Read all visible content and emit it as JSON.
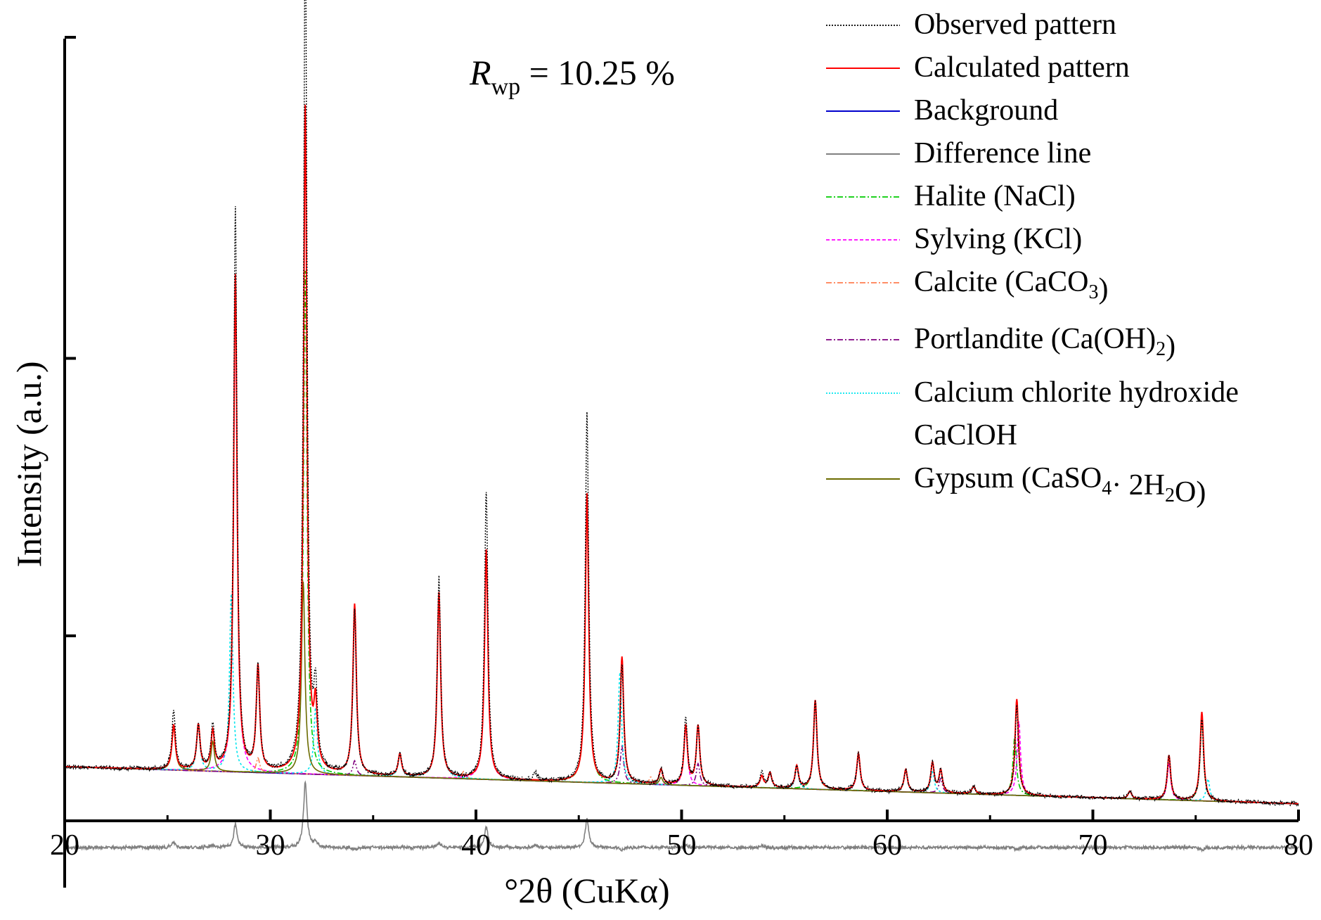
{
  "chart_data": {
    "type": "line",
    "title": "",
    "annotation": {
      "symbol": "R",
      "subscript": "wp",
      "text": " = 10.25 %"
    },
    "xlabel": "°2θ (CuKα)",
    "ylabel": "Intensity (a.u.)",
    "xlim": [
      20,
      80
    ],
    "ylim": [
      0,
      100
    ],
    "x_ticks": [
      20,
      30,
      40,
      50,
      60,
      70,
      80
    ],
    "grid": false,
    "legend_position": "top-right",
    "legend": [
      {
        "label": "Observed pattern",
        "color": "#000000",
        "style": "dotted"
      },
      {
        "label": "Calculated pattern",
        "color": "#ff0000",
        "style": "solid"
      },
      {
        "label": "Background",
        "color": "#0000cc",
        "style": "solid"
      },
      {
        "label": "Difference line",
        "color": "#808080",
        "style": "solid"
      },
      {
        "label": "Halite (NaCl)",
        "color": "#00cc00",
        "style": "dashdot"
      },
      {
        "label": "Sylving (KCl)",
        "color": "#ff00ff",
        "style": "dashed"
      },
      {
        "label": "Calcite (CaCO",
        "sub": "3",
        "tail": ")",
        "color": "#ff7f50",
        "style": "dashdot"
      },
      {
        "label": "Portlandite (Ca(OH)",
        "sub": "2",
        "tail": ")",
        "color": "#800080",
        "style": "dashdot"
      },
      {
        "label": "Calcium chlorite hydroxide",
        "label2": "CaClOH",
        "color": "#00e5ee",
        "style": "dotted"
      },
      {
        "label": "Gypsum (CaSO",
        "sub": "4",
        "tail": "· 2H",
        "sub2": "2",
        "tail2": "O)",
        "color": "#6b6b00",
        "style": "solid"
      }
    ],
    "background": {
      "x": [
        20,
        80
      ],
      "y": [
        7.3,
        2.3
      ]
    },
    "phases": [
      {
        "name": "Halite (NaCl)",
        "color": "#00cc00",
        "dash": "8,3,2,3",
        "peaks": [
          [
            31.7,
            68
          ],
          [
            45.4,
            39
          ],
          [
            56.5,
            12
          ],
          [
            66.2,
            8
          ],
          [
            75.3,
            11
          ]
        ]
      },
      {
        "name": "Sylving (KCl)",
        "color": "#ff00ff",
        "dash": "5,3",
        "peaks": [
          [
            28.3,
            65
          ],
          [
            40.5,
            31
          ],
          [
            50.2,
            8
          ],
          [
            58.6,
            5
          ],
          [
            66.4,
            10
          ],
          [
            73.7,
            5
          ]
        ]
      },
      {
        "name": "Calcite (CaCO3)",
        "color": "#ff7f50",
        "dash": "8,3,2,3",
        "peaks": [
          [
            29.4,
            2
          ],
          [
            39.4,
            1
          ],
          [
            48.5,
            1
          ]
        ]
      },
      {
        "name": "Portlandite (Ca(OH)2)",
        "color": "#800080",
        "dash": "8,3,2,3,2,3",
        "peaks": [
          [
            34.1,
            2
          ],
          [
            47.1,
            5
          ],
          [
            50.8,
            3
          ],
          [
            62.6,
            2
          ]
        ]
      },
      {
        "name": "Calcium chlorite hydroxide CaClOH",
        "color": "#00e5ee",
        "dash": "3,3",
        "peaks": [
          [
            26.5,
            6
          ],
          [
            28.1,
            24
          ],
          [
            32.2,
            9
          ],
          [
            36.3,
            3
          ],
          [
            38.2,
            25
          ],
          [
            47.0,
            15
          ],
          [
            55.6,
            3
          ],
          [
            60.9,
            3
          ],
          [
            62.2,
            3
          ],
          [
            75.6,
            3
          ]
        ]
      },
      {
        "name": "Gypsum (CaSO4·2H2O)",
        "color": "#6b6b00",
        "dash": "",
        "peaks": [
          [
            25.3,
            6
          ],
          [
            27.2,
            4
          ],
          [
            31.6,
            26
          ],
          [
            49.0,
            1
          ]
        ]
      }
    ],
    "calculated_peaks": [
      [
        25.3,
        6
      ],
      [
        26.5,
        6
      ],
      [
        27.2,
        5
      ],
      [
        28.3,
        67
      ],
      [
        29.4,
        14
      ],
      [
        31.7,
        90
      ],
      [
        32.2,
        8
      ],
      [
        34.1,
        23
      ],
      [
        36.3,
        3
      ],
      [
        38.2,
        25
      ],
      [
        40.5,
        31
      ],
      [
        45.4,
        39
      ],
      [
        47.1,
        17
      ],
      [
        49.0,
        2
      ],
      [
        50.2,
        8
      ],
      [
        50.8,
        8
      ],
      [
        53.9,
        1.5
      ],
      [
        54.3,
        2
      ],
      [
        55.6,
        3
      ],
      [
        56.5,
        12
      ],
      [
        58.6,
        5
      ],
      [
        60.9,
        3
      ],
      [
        62.2,
        4
      ],
      [
        62.6,
        3
      ],
      [
        64.2,
        1
      ],
      [
        66.3,
        13
      ],
      [
        71.8,
        1
      ],
      [
        73.7,
        6
      ],
      [
        75.3,
        12
      ]
    ],
    "observed_peaks": [
      [
        25.3,
        8
      ],
      [
        26.5,
        6
      ],
      [
        27.2,
        6
      ],
      [
        28.3,
        76
      ],
      [
        29.4,
        14
      ],
      [
        31.7,
        115
      ],
      [
        32.2,
        10
      ],
      [
        34.1,
        22
      ],
      [
        36.3,
        3
      ],
      [
        38.2,
        27
      ],
      [
        40.5,
        39
      ],
      [
        42.9,
        1
      ],
      [
        45.4,
        50
      ],
      [
        47.1,
        16
      ],
      [
        49.0,
        2
      ],
      [
        50.2,
        9
      ],
      [
        50.8,
        8
      ],
      [
        53.9,
        2
      ],
      [
        54.3,
        2
      ],
      [
        55.6,
        3
      ],
      [
        56.5,
        12
      ],
      [
        58.6,
        5
      ],
      [
        60.9,
        3
      ],
      [
        62.2,
        4
      ],
      [
        62.6,
        3
      ],
      [
        64.2,
        1
      ],
      [
        66.3,
        12
      ],
      [
        71.8,
        1
      ],
      [
        73.7,
        6
      ],
      [
        75.3,
        11
      ]
    ],
    "difference_offset": -3.6
  }
}
